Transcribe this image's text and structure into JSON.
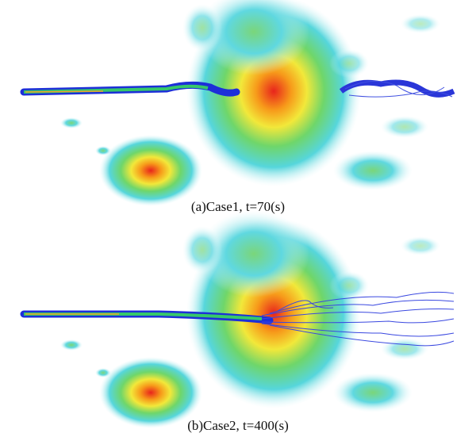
{
  "figure": {
    "panels": [
      {
        "caption": "(a)Case1, t=70(s)"
      },
      {
        "caption": "(b)Case2, t=400(s)"
      }
    ]
  }
}
